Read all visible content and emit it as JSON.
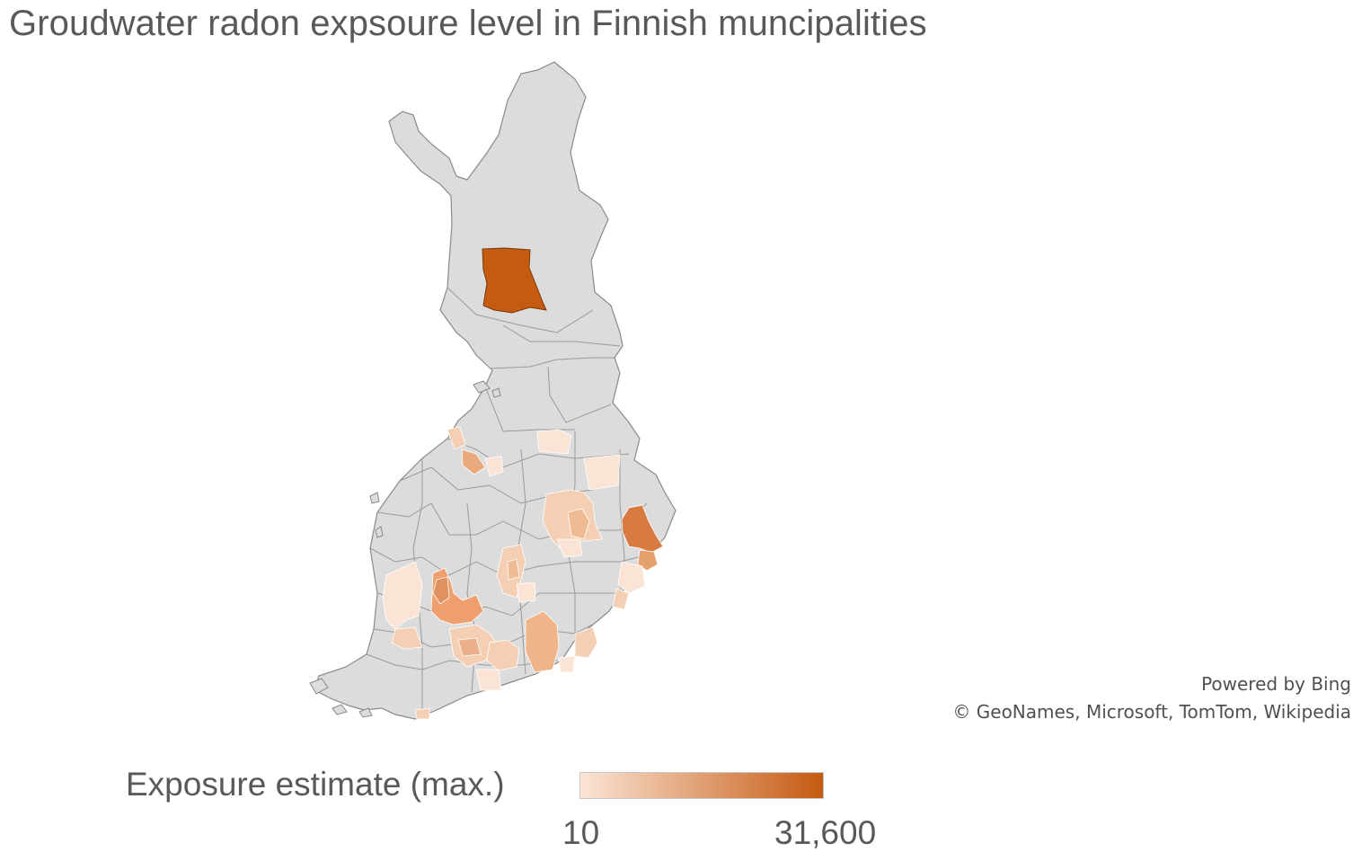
{
  "title": "Groudwater radon expsoure level in Finnish muncipalities",
  "map": {
    "region": "Finland",
    "base_fill": "#dcdcdc",
    "border_color": "#8a8a8a",
    "highlight_color": "#c55a11",
    "mid_color": "#df915e",
    "light_color": "#f5cfb3",
    "palest_color": "#fbe4d5"
  },
  "attribution": {
    "line1": "Powered by Bing",
    "line2": "© GeoNames, Microsoft, TomTom, Wikipedia"
  },
  "legend": {
    "title": "Exposure estimate (max.)",
    "min_label": "10",
    "max_label": "31,600",
    "gradient_start": "#fbe4d5",
    "gradient_end": "#c55a11"
  }
}
